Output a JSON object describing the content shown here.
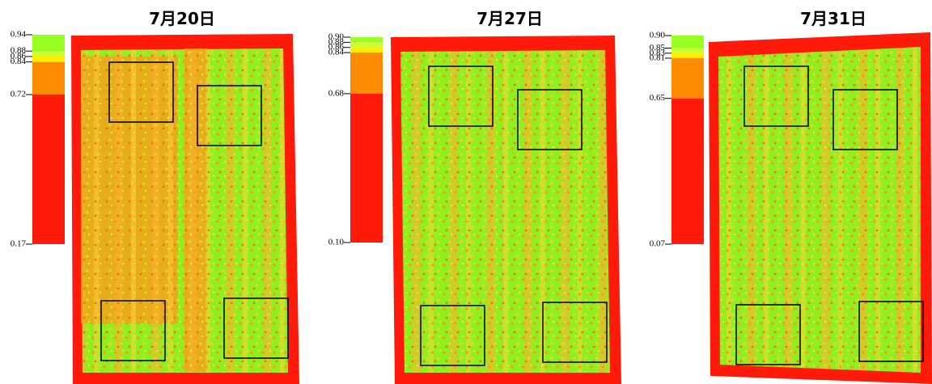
{
  "panels": [
    {
      "title": "7月20日",
      "scale": [
        {
          "value": 0.94,
          "label": "0.94"
        },
        {
          "value": 0.88,
          "label": "0.88"
        },
        {
          "value": 0.86,
          "label": "0.86"
        },
        {
          "value": 0.84,
          "label": "0.84"
        },
        {
          "value": 0.72,
          "label": "0.72"
        },
        {
          "value": 0.17,
          "label": "0.17"
        }
      ]
    },
    {
      "title": "7月27日",
      "scale": [
        {
          "value": 0.9,
          "label": "0.90"
        },
        {
          "value": 0.88,
          "label": "0.88"
        },
        {
          "value": 0.86,
          "label": "0.86"
        },
        {
          "value": 0.84,
          "label": "0.84"
        },
        {
          "value": 0.68,
          "label": "0.68"
        },
        {
          "value": 0.1,
          "label": "0.10"
        }
      ]
    },
    {
      "title": "7月31日",
      "scale": [
        {
          "value": 0.9,
          "label": "0.90"
        },
        {
          "value": 0.85,
          "label": "0.85"
        },
        {
          "value": 0.83,
          "label": "0.83"
        },
        {
          "value": 0.81,
          "label": "0.81"
        },
        {
          "value": 0.65,
          "label": "0.65"
        },
        {
          "value": 0.07,
          "label": "0.07"
        }
      ]
    }
  ]
}
